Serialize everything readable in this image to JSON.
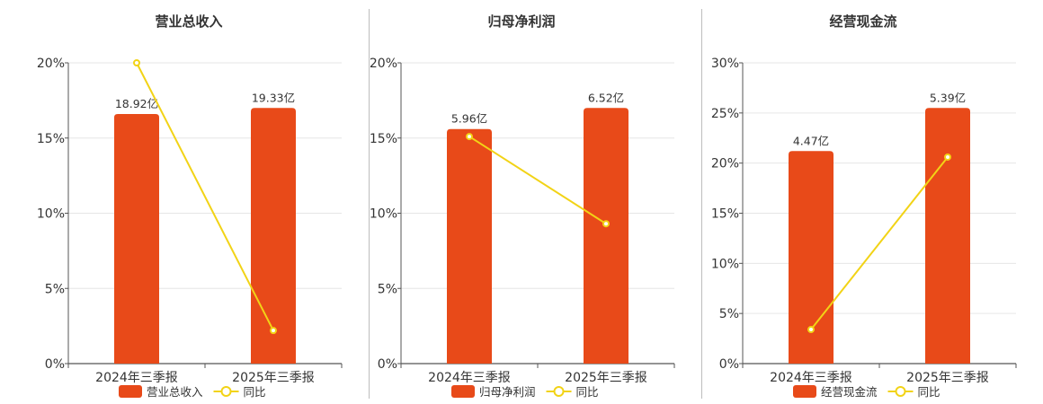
{
  "chart_data": [
    {
      "type": "bar",
      "title": "营业总收入",
      "categories": [
        "2024年三季报",
        "2025年三季报"
      ],
      "series": [
        {
          "name": "营业总收入",
          "kind": "bar",
          "values": [
            16.6,
            17.0
          ],
          "labels": [
            "18.92亿",
            "19.33亿"
          ]
        },
        {
          "name": "同比",
          "kind": "line",
          "values": [
            20.0,
            2.2
          ]
        }
      ],
      "yticks": [
        "0%",
        "5%",
        "10%",
        "15%",
        "20%"
      ],
      "ylim": [
        0,
        20
      ],
      "grid": true,
      "legend": "bottom"
    },
    {
      "type": "bar",
      "title": "归母净利润",
      "categories": [
        "2024年三季报",
        "2025年三季报"
      ],
      "series": [
        {
          "name": "归母净利润",
          "kind": "bar",
          "values": [
            15.6,
            17.0
          ],
          "labels": [
            "5.96亿",
            "6.52亿"
          ]
        },
        {
          "name": "同比",
          "kind": "line",
          "values": [
            15.1,
            9.3
          ]
        }
      ],
      "yticks": [
        "0%",
        "5%",
        "10%",
        "15%",
        "20%"
      ],
      "ylim": [
        0,
        20
      ],
      "grid": true,
      "legend": "bottom"
    },
    {
      "type": "bar",
      "title": "经营现金流",
      "categories": [
        "2024年三季报",
        "2025年三季报"
      ],
      "series": [
        {
          "name": "经营现金流",
          "kind": "bar",
          "values": [
            21.2,
            25.5
          ],
          "labels": [
            "4.47亿",
            "5.39亿"
          ]
        },
        {
          "name": "同比",
          "kind": "line",
          "values": [
            3.4,
            20.6
          ]
        }
      ],
      "yticks": [
        "0%",
        "5%",
        "10%",
        "15%",
        "20%",
        "25%",
        "30%"
      ],
      "ylim": [
        0,
        30
      ],
      "grid": true,
      "legend": "bottom"
    }
  ],
  "colors": {
    "bar": "#e84a19",
    "line": "#f2d316",
    "grid": "#e6e6e6",
    "axis": "#555555",
    "text": "#333333"
  }
}
